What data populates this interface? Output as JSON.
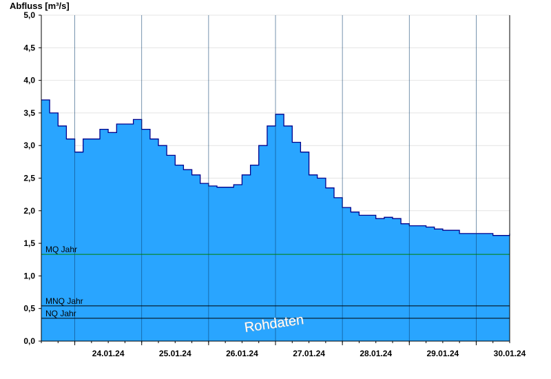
{
  "chart_data": {
    "type": "area",
    "ylabel": "Abfluss [m³/s]",
    "ylim": [
      0,
      5.0
    ],
    "y_ticks": [
      "0,0",
      "0,5",
      "1,0",
      "1,5",
      "2,0",
      "2,5",
      "3,0",
      "3,5",
      "4,0",
      "4,5",
      "5,0"
    ],
    "x_start": "23.01.24 12:00",
    "x_end": "30.01.24 12:00",
    "x_tick_labels": [
      "24.01.24",
      "25.01.24",
      "26.01.24",
      "27.01.24",
      "28.01.24",
      "29.01.24",
      "30.01.24"
    ],
    "grid": true,
    "series": [
      {
        "fill": "#29a5ff",
        "line": "#00008b",
        "x": [
          "23.01.24 12:00",
          "23.01.24 15:00",
          "23.01.24 18:00",
          "23.01.24 21:00",
          "24.01.24 00:00",
          "24.01.24 03:00",
          "24.01.24 06:00",
          "24.01.24 09:00",
          "24.01.24 12:00",
          "24.01.24 15:00",
          "24.01.24 18:00",
          "24.01.24 21:00",
          "25.01.24 00:00",
          "25.01.24 03:00",
          "25.01.24 06:00",
          "25.01.24 09:00",
          "25.01.24 12:00",
          "25.01.24 15:00",
          "25.01.24 18:00",
          "25.01.24 21:00",
          "26.01.24 00:00",
          "26.01.24 03:00",
          "26.01.24 06:00",
          "26.01.24 09:00",
          "26.01.24 12:00",
          "26.01.24 15:00",
          "26.01.24 18:00",
          "26.01.24 21:00",
          "27.01.24 00:00",
          "27.01.24 03:00",
          "27.01.24 06:00",
          "27.01.24 09:00",
          "27.01.24 12:00",
          "27.01.24 15:00",
          "27.01.24 18:00",
          "27.01.24 21:00",
          "28.01.24 00:00",
          "28.01.24 03:00",
          "28.01.24 06:00",
          "28.01.24 09:00",
          "28.01.24 12:00",
          "28.01.24 15:00",
          "28.01.24 18:00",
          "28.01.24 21:00",
          "29.01.24 00:00",
          "29.01.24 03:00",
          "29.01.24 06:00",
          "29.01.24 09:00",
          "29.01.24 12:00",
          "29.01.24 15:00",
          "29.01.24 18:00",
          "29.01.24 21:00",
          "30.01.24 00:00",
          "30.01.24 03:00",
          "30.01.24 06:00",
          "30.01.24 09:00",
          "30.01.24 12:00"
        ],
        "y": [
          3.7,
          3.5,
          3.3,
          3.1,
          2.9,
          3.1,
          3.1,
          3.25,
          3.2,
          3.33,
          3.33,
          3.4,
          3.25,
          3.1,
          3.0,
          2.85,
          2.7,
          2.63,
          2.55,
          2.42,
          2.38,
          2.36,
          2.36,
          2.4,
          2.55,
          2.7,
          3.0,
          3.3,
          3.48,
          3.3,
          3.05,
          2.9,
          2.55,
          2.5,
          2.35,
          2.2,
          2.05,
          1.98,
          1.93,
          1.93,
          1.88,
          1.9,
          1.88,
          1.8,
          1.77,
          1.77,
          1.75,
          1.72,
          1.7,
          1.7,
          1.65,
          1.65,
          1.65,
          1.65,
          1.62,
          1.62,
          1.65
        ]
      }
    ],
    "reference_lines": [
      {
        "label": "MQ Jahr",
        "value": 1.33,
        "color": "#008000"
      },
      {
        "label": "MNQ Jahr",
        "value": 0.54,
        "color": "#000000"
      },
      {
        "label": "NQ Jahr",
        "value": 0.35,
        "color": "#000000"
      }
    ],
    "watermark": "Rohdaten"
  }
}
